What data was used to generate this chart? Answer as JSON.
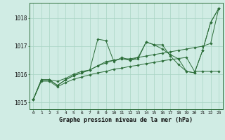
{
  "background_color": "#d0ece4",
  "grid_color": "#a8d4c4",
  "line_color": "#2d6e3a",
  "title": "Graphe pression niveau de la mer (hPa)",
  "xlim": [
    -0.5,
    23.5
  ],
  "ylim": [
    1014.75,
    1018.55
  ],
  "yticks": [
    1015,
    1016,
    1017,
    1018
  ],
  "xticks": [
    0,
    1,
    2,
    3,
    4,
    5,
    6,
    7,
    8,
    9,
    10,
    11,
    12,
    13,
    14,
    15,
    16,
    17,
    18,
    19,
    20,
    21,
    22,
    23
  ],
  "series": [
    {
      "x": [
        0,
        1,
        2,
        3,
        4,
        5,
        6,
        7,
        8,
        9,
        10,
        11,
        12,
        13,
        14,
        15,
        16,
        17,
        18,
        19,
        20,
        21,
        22,
        23
      ],
      "y": [
        1015.1,
        1015.8,
        1015.8,
        1015.6,
        1015.8,
        1015.95,
        1016.05,
        1016.15,
        1017.25,
        1017.2,
        1016.45,
        1016.6,
        1016.5,
        1016.55,
        1017.15,
        1017.05,
        1016.9,
        1016.7,
        1016.55,
        1016.1,
        1016.05,
        1016.85,
        1017.85,
        1018.35
      ]
    },
    {
      "x": [
        0,
        1,
        2,
        3,
        4,
        5,
        6,
        7,
        8,
        9,
        10,
        11,
        12,
        13,
        14,
        15,
        16,
        17,
        18,
        19,
        20,
        21,
        22,
        23
      ],
      "y": [
        1015.1,
        1015.8,
        1015.8,
        1015.6,
        1015.8,
        1015.95,
        1016.05,
        1016.15,
        1016.3,
        1016.45,
        1016.5,
        1016.55,
        1016.5,
        1016.6,
        1017.15,
        1017.05,
        1017.05,
        1016.65,
        1016.35,
        1016.1,
        1016.05,
        1016.85,
        1017.85,
        1018.35
      ]
    },
    {
      "x": [
        0,
        1,
        2,
        3,
        4,
        5,
        6,
        7,
        8,
        9,
        10,
        11,
        12,
        13,
        14,
        15,
        16,
        17,
        18,
        19,
        20,
        21,
        22,
        23
      ],
      "y": [
        1015.1,
        1015.8,
        1015.8,
        1015.75,
        1015.85,
        1016.0,
        1016.1,
        1016.15,
        1016.3,
        1016.4,
        1016.5,
        1016.55,
        1016.55,
        1016.6,
        1016.65,
        1016.7,
        1016.75,
        1016.8,
        1016.85,
        1016.9,
        1016.95,
        1017.0,
        1017.1,
        1018.35
      ]
    },
    {
      "x": [
        0,
        1,
        2,
        3,
        4,
        5,
        6,
        7,
        8,
        9,
        10,
        11,
        12,
        13,
        14,
        15,
        16,
        17,
        18,
        19,
        20,
        21,
        22,
        23
      ],
      "y": [
        1015.1,
        1015.75,
        1015.75,
        1015.55,
        1015.7,
        1015.82,
        1015.9,
        1015.98,
        1016.05,
        1016.1,
        1016.18,
        1016.22,
        1016.28,
        1016.32,
        1016.38,
        1016.42,
        1016.48,
        1016.52,
        1016.56,
        1016.6,
        1016.1,
        1016.1,
        1016.1,
        1016.1
      ]
    }
  ]
}
